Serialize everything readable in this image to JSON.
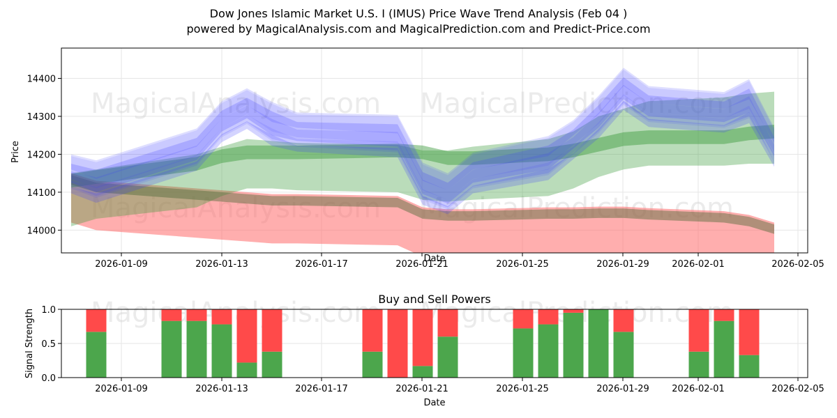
{
  "title": {
    "line1": "Dow Jones Islamic Market U.S. I (IMUS) Price Wave Trend Analysis (Feb 04 )",
    "line2": "powered by MagicalAnalysis.com and MagicalPrediction.com and Predict-Price.com"
  },
  "watermarks": [
    "MagicalAnalysis.com",
    "MagicalPrediction.com"
  ],
  "colors": {
    "blue": "#3a3aff",
    "green": "#3a9a3a",
    "red": "#ff6b6b",
    "buy": "#4ca64c",
    "sell": "#ff4a4a"
  },
  "chart_data": [
    {
      "type": "area",
      "title": "",
      "xlabel": "Date",
      "ylabel": "Price",
      "x_ticks": [
        "2026-01-09",
        "2026-01-13",
        "2026-01-17",
        "2026-01-21",
        "2026-01-25",
        "2026-01-29",
        "2026-02-01",
        "2026-02-05"
      ],
      "y_ticks": [
        14000,
        14100,
        14200,
        14300,
        14400
      ],
      "ylim": [
        13940,
        14480
      ],
      "dates": [
        "01-07",
        "01-08",
        "01-12",
        "01-13",
        "01-14",
        "01-15",
        "01-16",
        "01-20",
        "01-21",
        "01-22",
        "01-23",
        "01-26",
        "01-27",
        "01-28",
        "01-29",
        "01-30",
        "02-02",
        "02-03",
        "02-04"
      ],
      "series": [
        {
          "name": "blue price waves",
          "center": [
            14160,
            14140,
            14220,
            14300,
            14330,
            14290,
            14270,
            14260,
            14130,
            14110,
            14160,
            14200,
            14250,
            14310,
            14380,
            14340,
            14320,
            14350,
            14230
          ]
        },
        {
          "name": "green upper trend band",
          "upper": [
            14150,
            14160,
            14200,
            14220,
            14240,
            14235,
            14230,
            14225,
            14210,
            14210,
            14220,
            14240,
            14260,
            14300,
            14320,
            14340,
            14350,
            14360,
            14365
          ],
          "lower": [
            14010,
            14030,
            14060,
            14090,
            14110,
            14110,
            14105,
            14100,
            14080,
            14075,
            14080,
            14090,
            14110,
            14140,
            14160,
            14170,
            14170,
            14175,
            14175
          ]
        },
        {
          "name": "green mid line",
          "center": [
            14130,
            14140,
            14175,
            14195,
            14205,
            14205,
            14205,
            14210,
            14205,
            14190,
            14190,
            14200,
            14210,
            14225,
            14240,
            14245,
            14245,
            14255,
            14260
          ]
        },
        {
          "name": "red lower band",
          "upper": [
            14150,
            14130,
            14110,
            14105,
            14100,
            14095,
            14095,
            14090,
            14060,
            14055,
            14055,
            14060,
            14060,
            14062,
            14062,
            14058,
            14050,
            14040,
            14020
          ]
        }
      ]
    },
    {
      "type": "bar",
      "title": "Buy and Sell Powers",
      "xlabel": "Date",
      "ylabel": "Signal Strength",
      "x_ticks": [
        "2026-01-09",
        "2026-01-13",
        "2026-01-17",
        "2026-01-21",
        "2026-01-25",
        "2026-01-29",
        "2026-02-01",
        "2026-02-05"
      ],
      "y_ticks": [
        "0.0",
        "0.5",
        "1.0"
      ],
      "ylim": [
        0,
        1
      ],
      "categories": [
        "2026-01-08",
        "2026-01-11",
        "2026-01-12",
        "2026-01-13",
        "2026-01-14",
        "2026-01-15",
        "2026-01-19",
        "2026-01-20",
        "2026-01-21",
        "2026-01-22",
        "2026-01-25",
        "2026-01-26",
        "2026-01-27",
        "2026-01-28",
        "2026-01-29",
        "2026-02-01",
        "2026-02-02",
        "2026-02-03"
      ],
      "series": [
        {
          "name": "Buy",
          "values": [
            0.67,
            0.83,
            0.83,
            0.78,
            0.22,
            0.38,
            0.38,
            0.0,
            0.17,
            0.6,
            0.72,
            0.78,
            0.95,
            1.0,
            0.67,
            0.38,
            0.83,
            0.33
          ]
        },
        {
          "name": "Sell",
          "values": [
            0.33,
            0.17,
            0.17,
            0.22,
            0.78,
            0.62,
            0.62,
            1.0,
            0.83,
            0.4,
            0.28,
            0.22,
            0.05,
            0.0,
            0.33,
            0.62,
            0.17,
            0.67
          ]
        }
      ]
    }
  ]
}
